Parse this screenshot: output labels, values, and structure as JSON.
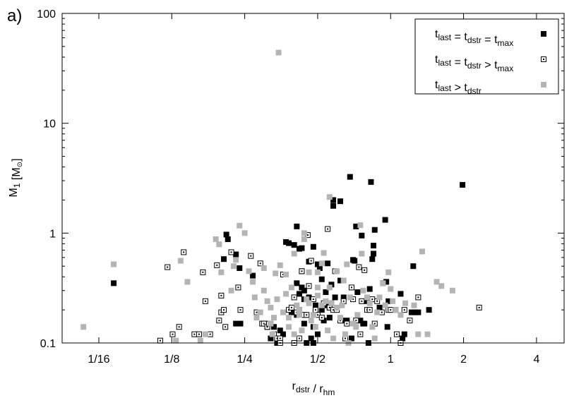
{
  "chart_data": {
    "type": "scatter",
    "panel_label": "a)",
    "xlabel": {
      "main": "r",
      "sub": "dstr",
      "sep": " / ",
      "main2": "r",
      "sub2": "hm"
    },
    "ylabel": {
      "main": "M",
      "sub": "1",
      "unit": "[M",
      "sun": "⊙",
      "close": "]"
    },
    "x_scale": "log2",
    "y_scale": "log10",
    "xlim": [
      0.0441,
      5.2
    ],
    "ylim": [
      0.1,
      100
    ],
    "x_ticks": [
      {
        "value": 0.0625,
        "label": "1/16"
      },
      {
        "value": 0.125,
        "label": "1/8"
      },
      {
        "value": 0.25,
        "label": "1/4"
      },
      {
        "value": 0.5,
        "label": "1/2"
      },
      {
        "value": 1,
        "label": "1"
      },
      {
        "value": 2,
        "label": "2"
      },
      {
        "value": 4,
        "label": "4"
      }
    ],
    "y_ticks": [
      {
        "value": 0.1,
        "label": "0.1"
      },
      {
        "value": 1,
        "label": "1"
      },
      {
        "value": 10,
        "label": "10"
      },
      {
        "value": 100,
        "label": "100"
      }
    ],
    "grid": false,
    "legend_position": "top-right",
    "series": [
      {
        "legend": [
          {
            "t": "t",
            "s": "last"
          },
          {
            "t": " = t",
            "s": "dstr"
          },
          {
            "t": " = t",
            "s": "max"
          }
        ],
        "marker": "filled-square",
        "color": "#000000",
        "points": [
          [
            0.072,
            0.35
          ],
          [
            0.21,
            0.97
          ],
          [
            0.213,
            0.88
          ],
          [
            0.205,
            0.58
          ],
          [
            0.23,
            0.64
          ],
          [
            0.23,
            0.15
          ],
          [
            0.238,
            0.48
          ],
          [
            0.24,
            0.15
          ],
          [
            0.27,
            0.41
          ],
          [
            0.31,
            0.14
          ],
          [
            0.32,
            0.11
          ],
          [
            0.33,
            0.14
          ],
          [
            0.34,
            0.1
          ],
          [
            0.35,
            0.13
          ],
          [
            0.36,
            0.12
          ],
          [
            0.37,
            0.83
          ],
          [
            0.38,
            0.81
          ],
          [
            0.39,
            0.19
          ],
          [
            0.4,
            0.78
          ],
          [
            0.41,
            1.15
          ],
          [
            0.41,
            0.35
          ],
          [
            0.41,
            0.18
          ],
          [
            0.42,
            0.72
          ],
          [
            0.42,
            0.28
          ],
          [
            0.42,
            0.2
          ],
          [
            0.43,
            0.45
          ],
          [
            0.43,
            0.73
          ],
          [
            0.43,
            0.32
          ],
          [
            0.44,
            0.3
          ],
          [
            0.44,
            0.15
          ],
          [
            0.44,
            0.25
          ],
          [
            0.45,
            0.1
          ],
          [
            0.46,
            0.55
          ],
          [
            0.46,
            0.26
          ],
          [
            0.47,
            0.11
          ],
          [
            0.48,
            0.75
          ],
          [
            0.48,
            0.14
          ],
          [
            0.48,
            0.1
          ],
          [
            0.49,
            0.22
          ],
          [
            0.49,
            0.19
          ],
          [
            0.5,
            0.52
          ],
          [
            0.5,
            0.12
          ],
          [
            0.51,
            0.48
          ],
          [
            0.52,
            0.38
          ],
          [
            0.52,
            0.2
          ],
          [
            0.53,
            0.16
          ],
          [
            0.54,
            0.22
          ],
          [
            0.54,
            0.29
          ],
          [
            0.55,
            0.53
          ],
          [
            0.56,
            0.17
          ],
          [
            0.56,
            0.21
          ],
          [
            0.57,
            0.34
          ],
          [
            0.58,
            1.77
          ],
          [
            0.58,
            2.0
          ],
          [
            0.59,
            0.26
          ],
          [
            0.62,
            1.95
          ],
          [
            0.62,
            0.37
          ],
          [
            0.63,
            0.16
          ],
          [
            0.64,
            0.26
          ],
          [
            0.66,
            0.16
          ],
          [
            0.68,
            3.25
          ],
          [
            0.69,
            0.11
          ],
          [
            0.7,
            0.57
          ],
          [
            0.71,
            0.56
          ],
          [
            0.72,
            1.15
          ],
          [
            0.73,
            0.29
          ],
          [
            0.75,
            0.16
          ],
          [
            0.76,
            0.95
          ],
          [
            0.77,
            0.15
          ],
          [
            0.78,
            0.15
          ],
          [
            0.8,
            0.24
          ],
          [
            0.81,
            0.1
          ],
          [
            0.82,
            0.31
          ],
          [
            0.83,
            2.92
          ],
          [
            0.84,
            0.58
          ],
          [
            0.85,
            0.65
          ],
          [
            0.86,
            1.07
          ],
          [
            0.85,
            0.77
          ],
          [
            0.9,
            0.21
          ],
          [
            0.93,
            0.35
          ],
          [
            0.95,
            1.32
          ],
          [
            0.96,
            0.36
          ],
          [
            0.97,
            0.14
          ],
          [
            0.98,
            0.24
          ],
          [
            1.05,
            0.2
          ],
          [
            1.1,
            0.28
          ],
          [
            1.12,
            0.11
          ],
          [
            1.14,
            0.12
          ],
          [
            1.22,
            0.19
          ],
          [
            1.24,
            0.5
          ],
          [
            1.26,
            0.19
          ],
          [
            1.3,
            0.19
          ],
          [
            1.44,
            0.2
          ],
          [
            1.98,
            2.75
          ]
        ]
      },
      {
        "legend": [
          {
            "t": "t",
            "s": "last"
          },
          {
            "t": " = t",
            "s": "dstr"
          },
          {
            "t": " > t",
            "s": "max"
          }
        ],
        "marker": "hollow-square",
        "color": "#000000",
        "points": [
          [
            0.112,
            0.105
          ],
          [
            0.12,
            0.49
          ],
          [
            0.126,
            0.12
          ],
          [
            0.134,
            0.14
          ],
          [
            0.14,
            0.67
          ],
          [
            0.155,
            0.12
          ],
          [
            0.162,
            0.12
          ],
          [
            0.168,
            0.44
          ],
          [
            0.172,
            0.24
          ],
          [
            0.18,
            0.12
          ],
          [
            0.192,
            0.51
          ],
          [
            0.196,
            0.16
          ],
          [
            0.2,
            0.19
          ],
          [
            0.2,
            0.27
          ],
          [
            0.205,
            0.2
          ],
          [
            0.208,
            0.14
          ],
          [
            0.22,
            0.67
          ],
          [
            0.235,
            0.32
          ],
          [
            0.24,
            0.2
          ],
          [
            0.265,
            0.62
          ],
          [
            0.28,
            0.19
          ],
          [
            0.29,
            0.53
          ],
          [
            0.295,
            0.15
          ],
          [
            0.3,
            0.15
          ],
          [
            0.31,
            0.14
          ],
          [
            0.315,
            0.15
          ],
          [
            0.32,
            0.15
          ],
          [
            0.33,
            0.12
          ],
          [
            0.34,
            0.11
          ],
          [
            0.35,
            0.11
          ],
          [
            0.35,
            0.1
          ],
          [
            0.36,
            0.42
          ],
          [
            0.38,
            0.2
          ],
          [
            0.39,
            0.21
          ],
          [
            0.4,
            0.26
          ],
          [
            0.4,
            0.1
          ],
          [
            0.41,
            0.19
          ],
          [
            0.42,
            0.11
          ],
          [
            0.43,
            0.45
          ],
          [
            0.44,
            0.18
          ],
          [
            0.45,
            0.18
          ],
          [
            0.455,
            0.96
          ],
          [
            0.46,
            0.33
          ],
          [
            0.47,
            0.56
          ],
          [
            0.48,
            0.25
          ],
          [
            0.49,
            0.2
          ],
          [
            0.5,
            0.18
          ],
          [
            0.52,
            0.17
          ],
          [
            0.53,
            0.23
          ],
          [
            0.55,
            1.09
          ],
          [
            0.56,
            0.21
          ],
          [
            0.57,
            0.23
          ],
          [
            0.58,
            0.2
          ],
          [
            0.59,
            0.45
          ],
          [
            0.6,
            0.2
          ],
          [
            0.62,
            0.16
          ],
          [
            0.64,
            0.24
          ],
          [
            0.65,
            0.11
          ],
          [
            0.66,
            0.15
          ],
          [
            0.69,
            0.32
          ],
          [
            0.7,
            0.25
          ],
          [
            0.72,
            0.16
          ],
          [
            0.74,
            0.49
          ],
          [
            0.75,
            0.12
          ],
          [
            0.76,
            0.24
          ],
          [
            0.78,
            0.46
          ],
          [
            0.8,
            0.2
          ],
          [
            0.82,
            0.2
          ],
          [
            0.84,
            0.25
          ],
          [
            0.86,
            0.15
          ],
          [
            0.88,
            0.24
          ],
          [
            0.92,
            0.19
          ],
          [
            0.98,
            0.2
          ],
          [
            1.0,
            0.2
          ],
          [
            1.06,
            0.12
          ],
          [
            1.1,
            0.1
          ],
          [
            1.14,
            0.2
          ],
          [
            1.2,
            0.16
          ],
          [
            1.3,
            0.26
          ],
          [
            2.32,
            0.21
          ]
        ]
      },
      {
        "legend": [
          {
            "t": "t",
            "s": "last"
          },
          {
            "t": " > t",
            "s": "dstr"
          }
        ],
        "marker": "filled-square",
        "color": "#b4b4b4",
        "points": [
          [
            0.054,
            0.14
          ],
          [
            0.072,
            0.52
          ],
          [
            0.13,
            0.105
          ],
          [
            0.136,
            0.56
          ],
          [
            0.145,
            0.36
          ],
          [
            0.164,
            0.105
          ],
          [
            0.172,
            0.12
          ],
          [
            0.19,
            0.88
          ],
          [
            0.196,
            0.79
          ],
          [
            0.2,
            0.44
          ],
          [
            0.22,
            0.3
          ],
          [
            0.225,
            0.5
          ],
          [
            0.23,
            0.57
          ],
          [
            0.238,
            1.17
          ],
          [
            0.25,
            1.0
          ],
          [
            0.26,
            0.45
          ],
          [
            0.27,
            0.36
          ],
          [
            0.275,
            0.26
          ],
          [
            0.28,
            0.17
          ],
          [
            0.29,
            0.19
          ],
          [
            0.3,
            0.48
          ],
          [
            0.3,
            0.3
          ],
          [
            0.31,
            0.24
          ],
          [
            0.32,
            0.21
          ],
          [
            0.32,
            0.15
          ],
          [
            0.325,
            0.12
          ],
          [
            0.33,
            0.17
          ],
          [
            0.34,
            0.25
          ],
          [
            0.335,
            0.43
          ],
          [
            0.35,
            0.51
          ],
          [
            0.36,
            0.19
          ],
          [
            0.37,
            0.42
          ],
          [
            0.37,
            0.28
          ],
          [
            0.38,
            0.17
          ],
          [
            0.38,
            0.14
          ],
          [
            0.39,
            0.32
          ],
          [
            0.4,
            0.65
          ],
          [
            0.4,
            0.12
          ],
          [
            0.41,
            0.22
          ],
          [
            0.42,
            0.2
          ],
          [
            0.42,
            0.18
          ],
          [
            0.43,
            0.13
          ],
          [
            0.44,
            1.0
          ],
          [
            0.44,
            0.88
          ],
          [
            0.45,
            0.25
          ],
          [
            0.46,
            0.44
          ],
          [
            0.46,
            0.23
          ],
          [
            0.47,
            0.16
          ],
          [
            0.48,
            0.18
          ],
          [
            0.49,
            0.14
          ],
          [
            0.5,
            0.44
          ],
          [
            0.5,
            0.27
          ],
          [
            0.5,
            0.32
          ],
          [
            0.52,
            0.53
          ],
          [
            0.52,
            0.22
          ],
          [
            0.53,
            0.66
          ],
          [
            0.54,
            0.24
          ],
          [
            0.55,
            0.13
          ],
          [
            0.56,
            2.13
          ],
          [
            0.56,
            0.32
          ],
          [
            0.57,
            0.23
          ],
          [
            0.58,
            0.11
          ],
          [
            0.6,
            0.45
          ],
          [
            0.6,
            0.21
          ],
          [
            0.62,
            0.17
          ],
          [
            0.63,
            0.22
          ],
          [
            0.64,
            0.37
          ],
          [
            0.65,
            0.12
          ],
          [
            0.66,
            0.52
          ],
          [
            0.67,
            0.1
          ],
          [
            0.68,
            0.26
          ],
          [
            0.7,
            0.15
          ],
          [
            0.72,
            0.14
          ],
          [
            0.73,
            0.18
          ],
          [
            0.75,
            1.18
          ],
          [
            0.76,
            0.65
          ],
          [
            0.77,
            0.3
          ],
          [
            0.8,
            0.26
          ],
          [
            0.82,
            0.23
          ],
          [
            0.84,
            0.14
          ],
          [
            0.86,
            0.11
          ],
          [
            0.88,
            0.19
          ],
          [
            0.9,
            0.26
          ],
          [
            0.93,
            0.35
          ],
          [
            0.95,
            0.22
          ],
          [
            0.98,
            0.44
          ],
          [
            1.0,
            0.31
          ],
          [
            1.02,
            0.24
          ],
          [
            1.05,
            0.2
          ],
          [
            1.1,
            0.18
          ],
          [
            1.15,
            0.23
          ],
          [
            1.25,
            0.22
          ],
          [
            1.3,
            0.12
          ],
          [
            1.35,
            0.68
          ],
          [
            1.42,
            0.12
          ],
          [
            1.55,
            0.36
          ],
          [
            1.62,
            0.33
          ],
          [
            1.8,
            0.3
          ],
          [
            0.345,
            44
          ]
        ]
      }
    ]
  }
}
